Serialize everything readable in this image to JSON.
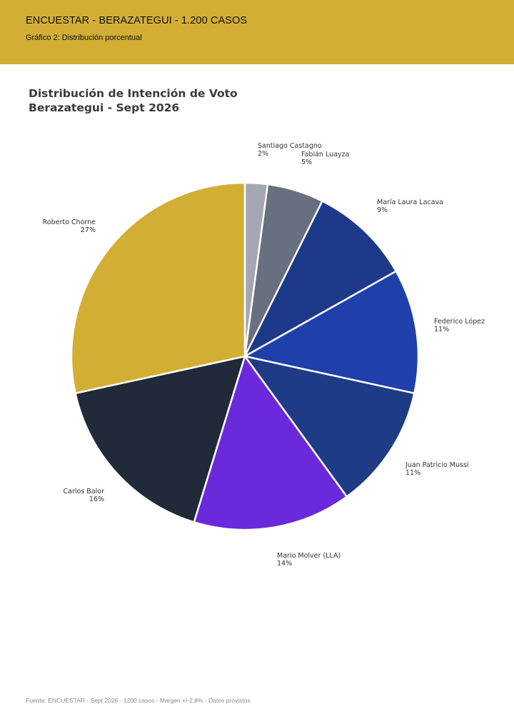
{
  "header": {
    "title": "ENCUESTAR - BERAZATEGUI - 1.200 CASOS",
    "subtitle": "Gráfico 2: Distribución porcentual"
  },
  "footer": "Fuente: ENCUESTAR - Sept 2026 - 1200 casos - Margen +/-2,8% - Datos provistos",
  "chart_data": {
    "type": "pie",
    "title_lines": [
      "Distribución de Intención de Voto",
      "Berazategui - Sept 2026"
    ],
    "slices": [
      {
        "label": "Santiago Castagno",
        "value": 2,
        "display": "2%",
        "color": "#a3a6b3"
      },
      {
        "label": "Fabián Luayza",
        "value": 5,
        "display": "5%",
        "color": "#68707f"
      },
      {
        "label": "María Laura Lacava",
        "value": 9,
        "display": "9%",
        "color": "#1e398a"
      },
      {
        "label": "Federico López",
        "value": 11,
        "display": "11%",
        "color": "#1f40ab"
      },
      {
        "label": "Juan Patricio Mussi",
        "value": 11,
        "display": "11%",
        "color": "#1e3b86"
      },
      {
        "label": "Mario Molver (LLA)",
        "value": 14,
        "display": "14%",
        "color": "#6b29dc"
      },
      {
        "label": "Carlos Balor",
        "value": 16,
        "display": "16%",
        "color": "#212a38"
      },
      {
        "label": "Roberto Chorne",
        "value": 27,
        "display": "27%",
        "color": "#d3ae34"
      }
    ],
    "start": "top",
    "direction": "clockwise",
    "legend": "none"
  }
}
